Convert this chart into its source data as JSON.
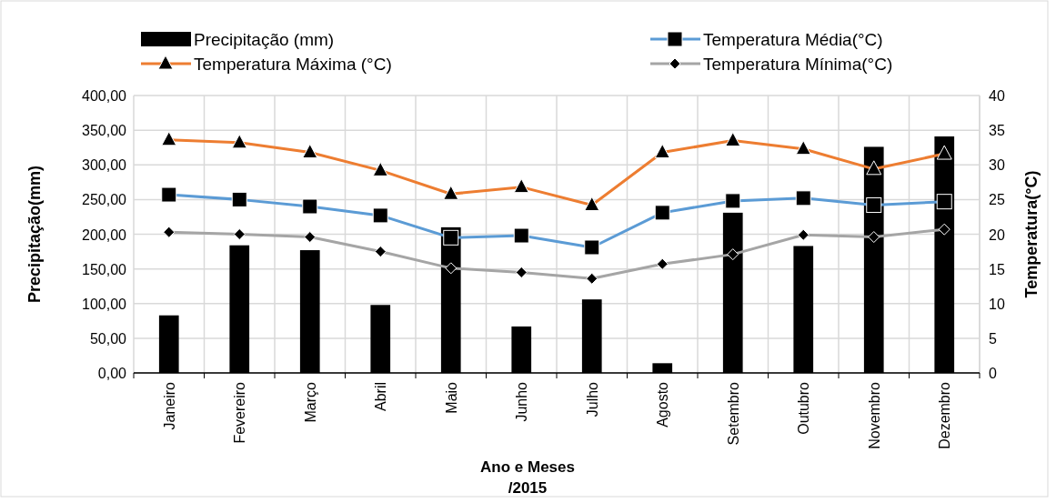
{
  "chart_data": {
    "type": "bar",
    "xlabel": "Ano e Meses\n/2015",
    "ylabel": "Precipitação(mm)",
    "y2label": "Temperatura(°C)",
    "categories": [
      "Janeiro",
      "Fevereiro",
      "Março",
      "Abril",
      "Maio",
      "Junho",
      "Julho",
      "Agosto",
      "Setembro",
      "Outubro",
      "Novembro",
      "Dezembro"
    ],
    "series": [
      {
        "name": "Precipitação (mm)",
        "color": "#000000",
        "values": [
          83,
          184,
          177,
          98,
          210,
          67,
          106,
          14,
          231,
          183,
          326,
          341
        ]
      },
      {
        "name": "Temperatura Média(°C)",
        "type": "line",
        "axis": "y2",
        "color": "#5b9bd5",
        "marker": "square",
        "values": [
          25.7,
          25.0,
          24.0,
          22.7,
          19.5,
          19.8,
          18.1,
          23.1,
          24.8,
          25.2,
          24.2,
          24.7
        ]
      },
      {
        "name": "Temperatura Máxima (°C)",
        "type": "line",
        "axis": "y2",
        "color": "#ed7d31",
        "marker": "triangle",
        "values": [
          33.6,
          33.2,
          31.8,
          29.2,
          25.8,
          26.8,
          24.2,
          31.8,
          33.5,
          32.3,
          29.4,
          31.6
        ]
      },
      {
        "name": "Temperatura Mínima(°C)",
        "type": "line",
        "axis": "y2",
        "color": "#a5a5a5",
        "marker": "diamond",
        "values": [
          20.3,
          20.0,
          19.6,
          17.5,
          15.1,
          14.5,
          13.6,
          15.7,
          17.1,
          19.9,
          19.6,
          20.7
        ]
      }
    ],
    "ylim": [
      0,
      400
    ],
    "yticks": [
      {
        "value": 0,
        "label": "0,00"
      },
      {
        "value": 50,
        "label": "50,00"
      },
      {
        "value": 100,
        "label": "100,00"
      },
      {
        "value": 150,
        "label": "150,00"
      },
      {
        "value": 200,
        "label": "200,00"
      },
      {
        "value": 250,
        "label": "250,00"
      },
      {
        "value": 300,
        "label": "300,00"
      },
      {
        "value": 350,
        "label": "350,00"
      },
      {
        "value": 400,
        "label": "400,00"
      }
    ],
    "y2lim": [
      0,
      40
    ],
    "y2ticks": [
      0,
      5,
      10,
      15,
      20,
      25,
      30,
      35,
      40
    ],
    "grid": true,
    "legend": "top"
  }
}
